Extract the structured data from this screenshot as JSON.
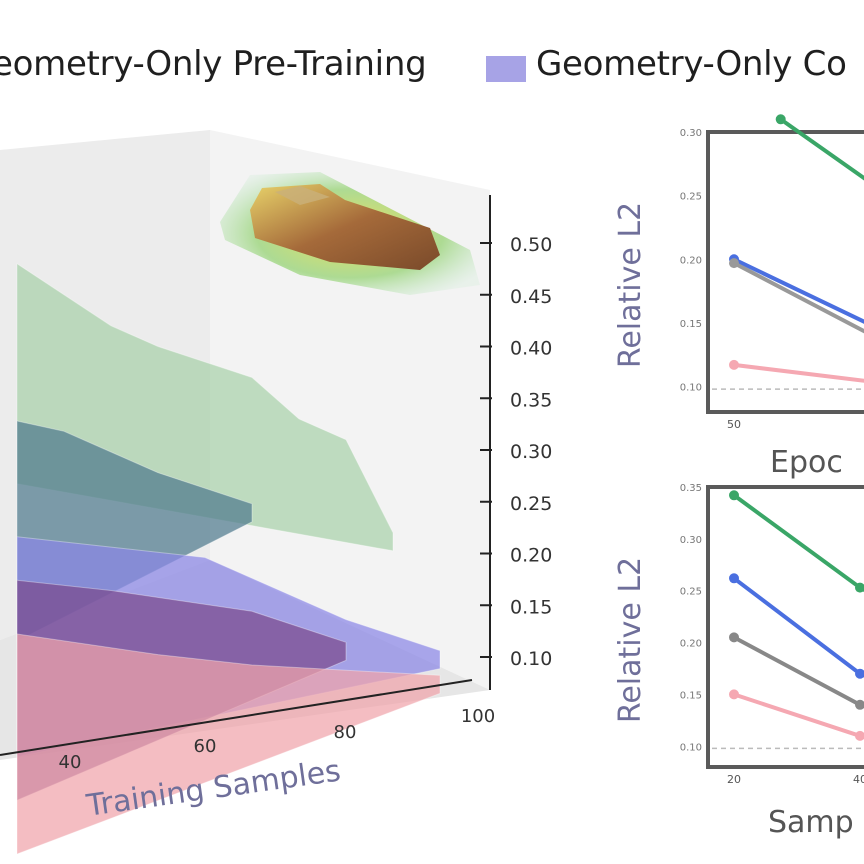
{
  "legend": {
    "items": [
      {
        "label": "eometry-Only Pre-Training",
        "color": "#5b8ee6"
      },
      {
        "label": "Geometry-Only Co",
        "color": "#a7a3e6"
      }
    ]
  },
  "chart_data": [
    {
      "type": "area",
      "xlabel": "Training Samples",
      "ylabel": "",
      "x_ticks": [
        40,
        60,
        80,
        100
      ],
      "z_ticks": [
        0.1,
        0.15,
        0.2,
        0.25,
        0.3,
        0.35,
        0.4,
        0.45,
        0.5
      ],
      "zlim": [
        0.08,
        0.53
      ],
      "series": [
        {
          "color": "#9ccb9e",
          "x": [
            10,
            30,
            40,
            60,
            70,
            80,
            90
          ],
          "values": [
            0.48,
            0.42,
            0.4,
            0.37,
            0.33,
            0.31,
            0.22
          ]
        },
        {
          "color": "#4f7a8e",
          "x": [
            10,
            20,
            30,
            40,
            60
          ],
          "values": [
            0.33,
            0.32,
            0.3,
            0.28,
            0.25
          ]
        },
        {
          "color": "#8a86e6",
          "x": [
            10,
            30,
            50,
            60,
            80,
            100
          ],
          "values": [
            0.22,
            0.21,
            0.2,
            0.18,
            0.14,
            0.11
          ]
        },
        {
          "color": "#7a4a8e",
          "x": [
            10,
            30,
            60,
            80
          ],
          "values": [
            0.18,
            0.17,
            0.15,
            0.12
          ]
        },
        {
          "color": "#f0a3aa",
          "x": [
            10,
            40,
            60,
            100
          ],
          "values": [
            0.13,
            0.11,
            0.1,
            0.09
          ]
        }
      ]
    },
    {
      "type": "line",
      "xlabel": "Epoc",
      "ylabel": "Relative L2",
      "x_ticks": [
        "50"
      ],
      "y_ticks": [
        "0.30",
        "0.25",
        "0.20",
        "0.15",
        "0.10"
      ],
      "ylim": [
        0.08,
        0.3
      ],
      "series": [
        {
          "color": "#3aa667",
          "values": [
            [
              0.32,
              0.31
            ],
            [
              1.0,
              0.255
            ]
          ]
        },
        {
          "color": "#4a6fe0",
          "values": [
            [
              0.0,
              0.2
            ],
            [
              1.0,
              0.145
            ]
          ]
        },
        {
          "color": "#999999",
          "values": [
            [
              0.0,
              0.197
            ],
            [
              1.0,
              0.137
            ]
          ]
        },
        {
          "color": "#f5a8b2",
          "values": [
            [
              0.0,
              0.117
            ],
            [
              1.0,
              0.103
            ]
          ]
        }
      ],
      "reference_line": 0.098
    },
    {
      "type": "line",
      "xlabel": "Samp",
      "ylabel": "Relative L2",
      "x_ticks": [
        "20",
        "40"
      ],
      "y_ticks": [
        "0.35",
        "0.30",
        "0.25",
        "0.20",
        "0.15",
        "0.10"
      ],
      "ylim": [
        0.08,
        0.35
      ],
      "series": [
        {
          "color": "#3aa667",
          "values": [
            [
              20,
              0.342
            ],
            [
              40,
              0.253
            ],
            [
              44,
              0.24
            ]
          ]
        },
        {
          "color": "#4a6fe0",
          "values": [
            [
              20,
              0.262
            ],
            [
              40,
              0.17
            ],
            [
              44,
              0.16
            ]
          ]
        },
        {
          "color": "#888888",
          "values": [
            [
              20,
              0.205
            ],
            [
              40,
              0.14
            ],
            [
              44,
              0.132
            ]
          ]
        },
        {
          "color": "#f5a8b2",
          "values": [
            [
              20,
              0.15
            ],
            [
              40,
              0.11
            ],
            [
              44,
              0.105
            ]
          ]
        }
      ],
      "reference_line": 0.098
    }
  ]
}
